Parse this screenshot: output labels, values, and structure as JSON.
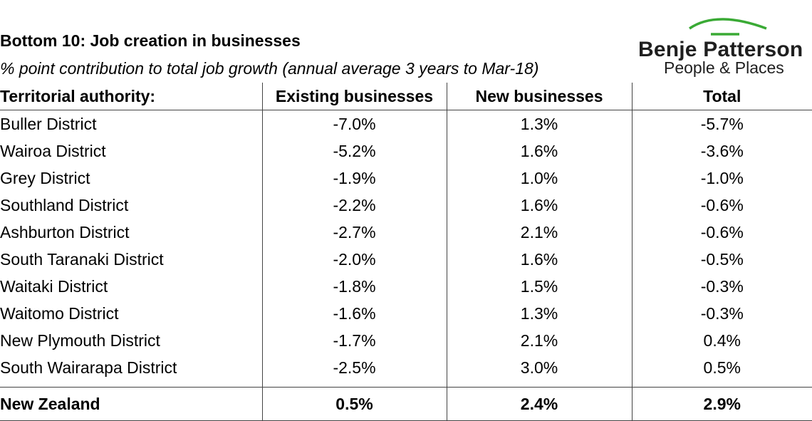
{
  "header": {
    "title": "Bottom 10: Job creation in businesses",
    "subtitle": "% point contribution to total job growth (annual average 3 years to Mar-18)"
  },
  "logo": {
    "name": "Benje Patterson",
    "tagline": "People & Places",
    "arc_color": "#3aaa35",
    "icon": "roof-arc-icon"
  },
  "chart_data": {
    "type": "table",
    "title": "Bottom 10: Job creation in businesses",
    "subtitle": "% point contribution to total job growth (annual average 3 years to Mar-18)",
    "columns": [
      "Territorial authority:",
      "Existing businesses",
      "New businesses",
      "Total"
    ],
    "rows": [
      [
        "Buller District",
        "-7.0%",
        "1.3%",
        "-5.7%"
      ],
      [
        "Wairoa District",
        "-5.2%",
        "1.6%",
        "-3.6%"
      ],
      [
        "Grey District",
        "-1.9%",
        "1.0%",
        "-1.0%"
      ],
      [
        "Southland District",
        "-2.2%",
        "1.6%",
        "-0.6%"
      ],
      [
        "Ashburton District",
        "-2.7%",
        "2.1%",
        "-0.6%"
      ],
      [
        "South Taranaki District",
        "-2.0%",
        "1.6%",
        "-0.5%"
      ],
      [
        "Waitaki District",
        "-1.8%",
        "1.5%",
        "-0.3%"
      ],
      [
        "Waitomo District",
        "-1.6%",
        "1.3%",
        "-0.3%"
      ],
      [
        "New Plymouth District",
        "-1.7%",
        "2.1%",
        "0.4%"
      ],
      [
        "South Wairarapa District",
        "-2.5%",
        "3.0%",
        "0.5%"
      ]
    ],
    "total_row": [
      "New Zealand",
      "0.5%",
      "2.4%",
      "2.9%"
    ]
  }
}
